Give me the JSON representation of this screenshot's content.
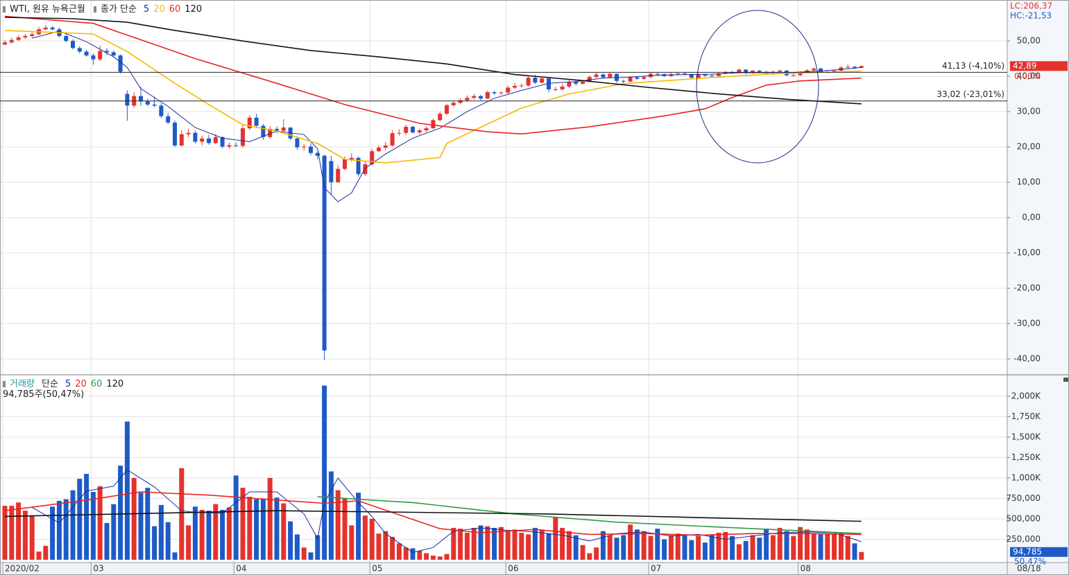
{
  "chart_data": [
    {
      "type": "candlestick",
      "title": "WTI, 원유 뉴욕근월",
      "moving_average_label": "종가 단순",
      "categories": [
        "2020/02",
        null,
        null,
        null,
        null,
        null,
        null,
        null,
        null,
        null,
        null,
        null,
        null,
        "03",
        null,
        null,
        null,
        null,
        null,
        null,
        null,
        null,
        null,
        null,
        null,
        null,
        null,
        null,
        null,
        null,
        null,
        null,
        null,
        null,
        "04",
        null,
        null,
        null,
        null,
        null,
        null,
        null,
        null,
        null,
        null,
        null,
        null,
        null,
        null,
        null,
        null,
        null,
        null,
        null,
        "05",
        null,
        null,
        null,
        null,
        null,
        null,
        null,
        null,
        null,
        null,
        null,
        null,
        null,
        null,
        null,
        null,
        null,
        null,
        null,
        "06",
        null,
        null,
        null,
        null,
        null,
        null,
        null,
        null,
        null,
        null,
        null,
        null,
        null,
        null,
        null,
        null,
        null,
        null,
        null,
        null,
        "07",
        null,
        null,
        null,
        null,
        null,
        null,
        null,
        null,
        null,
        null,
        null,
        null,
        null,
        null,
        null,
        null,
        null,
        null,
        null,
        null,
        null,
        "08",
        null,
        null,
        null,
        null,
        null,
        null,
        null,
        null,
        null
      ],
      "open": [
        49.0,
        49.6,
        50.3,
        51.0,
        51.4,
        51.9,
        53.3,
        53.8,
        53.3,
        51.4,
        50.0,
        48.0,
        47.0,
        45.9,
        44.8,
        47.2,
        46.8,
        45.9,
        35.0,
        31.7,
        34.4,
        32.9,
        32.0,
        31.7,
        28.7,
        26.9,
        20.4,
        23.6,
        24.0,
        21.5,
        22.4,
        21.1,
        22.8,
        20.1,
        20.5,
        20.3,
        25.3,
        28.3,
        26.0,
        22.8,
        25.1,
        24.6,
        25.5,
        22.4,
        19.9,
        20.1,
        18.3,
        17.5,
        16.0,
        10.0,
        13.8,
        16.5,
        16.9,
        12.3,
        15.1,
        18.8,
        19.8,
        20.4,
        23.9,
        24.0,
        25.7,
        24.1,
        24.7,
        25.3,
        27.6,
        29.4,
        31.8,
        32.5,
        33.2,
        33.9,
        34.4,
        33.7,
        35.5,
        35.2,
        35.4,
        36.8,
        37.3,
        37.4,
        39.6,
        38.2,
        39.4,
        36.3,
        36.3,
        37.1,
        38.4,
        37.9,
        38.5,
        39.8,
        40.5,
        39.7,
        40.7,
        38.7,
        38.5,
        39.7,
        39.3,
        39.8,
        40.7,
        40.6,
        40.1,
        40.6,
        40.8,
        40.6,
        39.6,
        40.5,
        40.2,
        40.1,
        40.8,
        41.2,
        41.0,
        41.9,
        40.9,
        41.6,
        41.3,
        41.0,
        41.3,
        41.6,
        40.3,
        40.3,
        41.0,
        41.7,
        42.2,
        41.2,
        41.2,
        41.6,
        42.5,
        42.7,
        42.4
      ],
      "high": [
        50.2,
        50.9,
        51.6,
        52.0,
        52.6,
        54.0,
        54.5,
        54.2,
        53.8,
        51.8,
        50.5,
        48.5,
        47.5,
        46.5,
        48.7,
        48.0,
        47.4,
        46.2,
        36.0,
        35.5,
        37.0,
        33.6,
        34.2,
        32.4,
        29.6,
        27.5,
        24.8,
        25.2,
        24.6,
        23.2,
        23.4,
        23.6,
        23.0,
        21.2,
        21.3,
        26.4,
        29.0,
        29.4,
        26.5,
        25.9,
        25.8,
        27.9,
        25.6,
        23.0,
        20.8,
        21.0,
        18.5,
        17.9,
        17.5,
        14.8,
        17.3,
        18.2,
        17.3,
        15.8,
        19.5,
        20.5,
        21.4,
        24.7,
        25.0,
        26.3,
        26.0,
        25.2,
        25.9,
        28.0,
        30.0,
        32.2,
        33.2,
        33.8,
        34.6,
        35.0,
        34.7,
        36.0,
        35.9,
        35.8,
        37.4,
        38.2,
        38.0,
        40.0,
        40.4,
        39.9,
        39.5,
        37.0,
        37.8,
        38.9,
        38.8,
        38.9,
        40.2,
        41.1,
        40.8,
        41.0,
        40.8,
        39.1,
        40.1,
        40.1,
        40.2,
        41.0,
        41.0,
        40.8,
        41.0,
        41.2,
        41.0,
        40.8,
        40.9,
        40.7,
        40.6,
        41.1,
        41.5,
        41.5,
        42.2,
        42.0,
        41.8,
        41.8,
        41.5,
        41.6,
        41.9,
        41.8,
        40.8,
        41.4,
        42.0,
        42.5,
        42.4,
        41.8,
        41.8,
        42.8,
        43.4,
        42.9,
        43.1
      ],
      "low": [
        48.8,
        49.2,
        50.0,
        50.6,
        51.0,
        51.6,
        53.0,
        53.0,
        51.0,
        49.6,
        47.6,
        46.5,
        45.5,
        43.3,
        44.3,
        46.0,
        45.4,
        40.8,
        27.4,
        31.0,
        31.6,
        31.5,
        31.2,
        28.2,
        26.5,
        20.0,
        20.2,
        22.8,
        21.0,
        20.5,
        20.6,
        20.8,
        19.6,
        19.5,
        19.9,
        19.8,
        24.8,
        25.5,
        22.0,
        22.4,
        23.9,
        24.2,
        22.0,
        19.3,
        19.0,
        17.6,
        16.5,
        -40.3,
        6.5,
        9.8,
        13.4,
        15.8,
        11.6,
        11.8,
        14.6,
        18.5,
        19.2,
        20.0,
        23.2,
        23.4,
        23.8,
        23.5,
        24.2,
        24.9,
        27.2,
        29.0,
        31.4,
        32.1,
        32.8,
        33.4,
        33.2,
        33.5,
        34.8,
        34.8,
        35.0,
        36.3,
        36.8,
        37.0,
        37.8,
        38.0,
        35.5,
        35.8,
        36.0,
        36.7,
        37.4,
        37.6,
        38.2,
        39.5,
        39.3,
        39.4,
        38.2,
        38.0,
        38.3,
        39.0,
        39.0,
        39.5,
        40.2,
        39.8,
        39.8,
        40.3,
        40.3,
        39.2,
        39.3,
        39.8,
        39.7,
        39.8,
        40.6,
        40.7,
        40.8,
        40.6,
        40.7,
        41.0,
        40.7,
        40.8,
        41.1,
        40.0,
        39.9,
        40.1,
        40.8,
        41.4,
        41.0,
        40.9,
        41.0,
        41.4,
        42.2,
        42.1,
        42.3
      ],
      "close": [
        49.6,
        50.3,
        51.0,
        51.4,
        51.9,
        53.3,
        53.8,
        53.3,
        51.4,
        50.0,
        48.0,
        47.0,
        45.9,
        44.8,
        47.2,
        46.8,
        45.9,
        41.3,
        31.7,
        34.4,
        32.9,
        32.0,
        31.7,
        28.7,
        26.9,
        20.4,
        23.6,
        24.0,
        21.5,
        22.4,
        21.1,
        22.8,
        20.1,
        20.5,
        20.3,
        25.3,
        28.3,
        26.0,
        22.8,
        25.1,
        24.6,
        25.5,
        22.4,
        19.9,
        20.1,
        18.3,
        17.5,
        -37.6,
        10.0,
        13.8,
        16.5,
        16.9,
        12.3,
        15.1,
        18.8,
        19.8,
        20.4,
        23.9,
        24.0,
        25.7,
        24.1,
        24.7,
        25.3,
        27.6,
        29.4,
        31.8,
        32.5,
        33.2,
        33.9,
        34.4,
        33.7,
        35.5,
        35.2,
        35.4,
        36.8,
        37.3,
        37.4,
        39.6,
        38.2,
        39.4,
        36.3,
        36.3,
        37.1,
        38.4,
        37.9,
        38.5,
        39.8,
        40.5,
        39.7,
        40.7,
        38.7,
        38.5,
        39.7,
        39.3,
        39.8,
        40.7,
        40.6,
        40.1,
        40.6,
        40.8,
        40.6,
        39.6,
        40.5,
        40.2,
        40.1,
        40.8,
        41.2,
        41.0,
        41.9,
        40.9,
        41.6,
        41.3,
        41.0,
        41.3,
        41.6,
        40.3,
        40.3,
        41.0,
        41.7,
        42.2,
        41.2,
        41.2,
        41.6,
        42.5,
        42.7,
        42.4,
        42.9
      ],
      "up_color": "#e5322d",
      "down_color": "#1e5bc6",
      "moving_averages": [
        {
          "name": "5",
          "color": "#1b2a9e",
          "x": [
            4,
            8,
            12,
            16,
            18,
            20,
            24,
            28,
            32,
            36,
            40,
            44,
            46,
            47,
            49,
            51,
            53,
            56,
            60,
            64,
            68,
            72,
            76,
            80,
            84,
            88,
            92,
            96,
            100,
            104,
            108,
            112,
            116,
            120,
            124,
            126
          ],
          "values": [
            50.8,
            52.8,
            49.8,
            45.5,
            42.5,
            36.5,
            31.5,
            25.5,
            22.5,
            21.5,
            24.5,
            23.5,
            19.5,
            8.5,
            4.5,
            7,
            14,
            18,
            22.5,
            25.3,
            30,
            33.8,
            36,
            38,
            38.5,
            39.5,
            39.8,
            40.3,
            40.5,
            40.6,
            41.0,
            41.0,
            41.1,
            41.5,
            42.1,
            42.5
          ]
        },
        {
          "name": "20",
          "color": "#f5b800",
          "x": [
            0,
            13,
            18,
            25,
            30,
            35,
            40,
            46,
            50,
            56,
            64,
            65,
            71,
            76,
            83,
            91,
            102,
            112,
            126
          ],
          "values": [
            53,
            52,
            47,
            38,
            32,
            26.3,
            24.5,
            21,
            16.5,
            15.5,
            17,
            21,
            26.5,
            31,
            35,
            37.9,
            39.4,
            40.6,
            41.5
          ]
        },
        {
          "name": "60",
          "color": "#e8231f",
          "x": [
            0,
            13,
            28,
            40,
            50,
            61,
            71,
            76,
            86,
            97,
            103,
            107,
            112,
            117,
            126
          ],
          "values": [
            57,
            55,
            45,
            38,
            32,
            26.7,
            24.3,
            23.7,
            25.7,
            28.8,
            30.8,
            34,
            37.5,
            38.7,
            39.5
          ]
        },
        {
          "name": "120",
          "color": "#111111",
          "x": [
            0,
            10,
            18,
            25,
            35,
            45,
            55,
            65,
            75,
            85,
            95,
            105,
            115,
            126
          ],
          "values": [
            56.7,
            56.3,
            55.3,
            53,
            50,
            47.3,
            45.5,
            43.5,
            40.5,
            38.8,
            36.8,
            35,
            33.5,
            32.2
          ]
        }
      ],
      "reference_lines": [
        {
          "value": 41.13,
          "label": "41,13 (-4,10%)"
        },
        {
          "value": 33.02,
          "label": "33,02 (-23,01%)"
        }
      ],
      "ylim": [
        -44.3,
        61.6
      ],
      "yticks": [
        {
          "value": 50,
          "label": "50,00"
        },
        {
          "value": 40,
          "label": "40,00"
        },
        {
          "value": 30,
          "label": "30,00"
        },
        {
          "value": 20,
          "label": "20,00"
        },
        {
          "value": 10,
          "label": "10,00"
        },
        {
          "value": 0,
          "label": "0,00"
        },
        {
          "value": -10,
          "label": "-10,00"
        },
        {
          "value": -20,
          "label": "-20,00"
        },
        {
          "value": -30,
          "label": "-30,00"
        },
        {
          "value": -40,
          "label": "-40,00"
        }
      ],
      "lc_label": "LC:206,37",
      "hc_label": "HC:-21,53",
      "last_price_label": "42,89",
      "change_label": "0,00%",
      "x_end_label": "08/18",
      "grid": true
    },
    {
      "type": "bar",
      "title": "거래량",
      "moving_average_label": "단순",
      "subtitle": "94,785주(50,47%)",
      "values": [
        660000,
        660000,
        700000,
        600000,
        540000,
        100000,
        170000,
        650000,
        720000,
        740000,
        850000,
        990000,
        1050000,
        830000,
        900000,
        450000,
        680000,
        1150000,
        1690000,
        1000000,
        820000,
        880000,
        410000,
        670000,
        460000,
        90000,
        1120000,
        420000,
        650000,
        610000,
        600000,
        680000,
        610000,
        640000,
        1030000,
        880000,
        770000,
        740000,
        740000,
        1000000,
        760000,
        690000,
        470000,
        310000,
        150000,
        90000,
        300000,
        2130000,
        1080000,
        850000,
        750000,
        420000,
        820000,
        540000,
        500000,
        320000,
        350000,
        280000,
        200000,
        150000,
        140000,
        110000,
        80000,
        50000,
        40000,
        70000,
        390000,
        380000,
        330000,
        390000,
        420000,
        410000,
        390000,
        400000,
        350000,
        370000,
        330000,
        310000,
        390000,
        370000,
        320000,
        520000,
        390000,
        350000,
        300000,
        180000,
        80000,
        150000,
        350000,
        300000,
        270000,
        300000,
        430000,
        370000,
        350000,
        290000,
        380000,
        250000,
        300000,
        320000,
        300000,
        240000,
        290000,
        210000,
        310000,
        330000,
        340000,
        290000,
        190000,
        230000,
        300000,
        270000,
        380000,
        300000,
        390000,
        350000,
        290000,
        400000,
        370000,
        320000,
        310000,
        320000,
        310000,
        330000,
        290000,
        200000,
        94785
      ],
      "moving_averages": [
        {
          "name": "5",
          "color": "#1b2a9e",
          "x": [
            4,
            8,
            12,
            16,
            18,
            22,
            26,
            28,
            32,
            36,
            40,
            44,
            46,
            47,
            49,
            52,
            54,
            56,
            60,
            63,
            66,
            70,
            74,
            78,
            82,
            86,
            90,
            94,
            98,
            102,
            106,
            110,
            114,
            118,
            122,
            126
          ],
          "values": [
            640000,
            450000,
            840000,
            900000,
            1100000,
            890000,
            600000,
            580000,
            570000,
            830000,
            830000,
            560000,
            260000,
            700000,
            1000000,
            700000,
            530000,
            320000,
            90000,
            150000,
            350000,
            390000,
            360000,
            340000,
            300000,
            230000,
            320000,
            340000,
            290000,
            310000,
            250000,
            290000,
            330000,
            340000,
            330000,
            220000
          ]
        },
        {
          "name": "20",
          "color": "#e8231f",
          "x": [
            0,
            13,
            20,
            30,
            40,
            47,
            52,
            58,
            64,
            70,
            78,
            86,
            94,
            102,
            110,
            118,
            126
          ],
          "values": [
            600000,
            740000,
            830000,
            790000,
            730000,
            690000,
            720000,
            550000,
            380000,
            330000,
            370000,
            310000,
            320000,
            300000,
            320000,
            320000,
            310000
          ]
        },
        {
          "name": "60",
          "color": "#2e9a4a",
          "x": [
            46,
            60,
            75,
            90,
            105,
            126
          ],
          "values": [
            770000,
            700000,
            560000,
            460000,
            400000,
            320000
          ]
        },
        {
          "name": "120",
          "color": "#111111",
          "x": [
            0,
            40,
            60,
            80,
            100,
            126
          ],
          "values": [
            530000,
            600000,
            580000,
            560000,
            520000,
            470000
          ]
        }
      ],
      "ylim": [
        -34000,
        2262000
      ],
      "yticks": [
        {
          "value": 250000,
          "label": "250,000"
        },
        {
          "value": 500000,
          "label": "500,000"
        },
        {
          "value": 750000,
          "label": "750,000"
        },
        {
          "value": 1000000,
          "label": "1,000K"
        },
        {
          "value": 1250000,
          "label": "1,250K"
        },
        {
          "value": 1500000,
          "label": "1,500K"
        },
        {
          "value": 1750000,
          "label": "1,750K"
        },
        {
          "value": 2000000,
          "label": "2,000K"
        }
      ],
      "last_value_label": "94,785",
      "ratio_label": "50,47%",
      "grid": true
    }
  ]
}
